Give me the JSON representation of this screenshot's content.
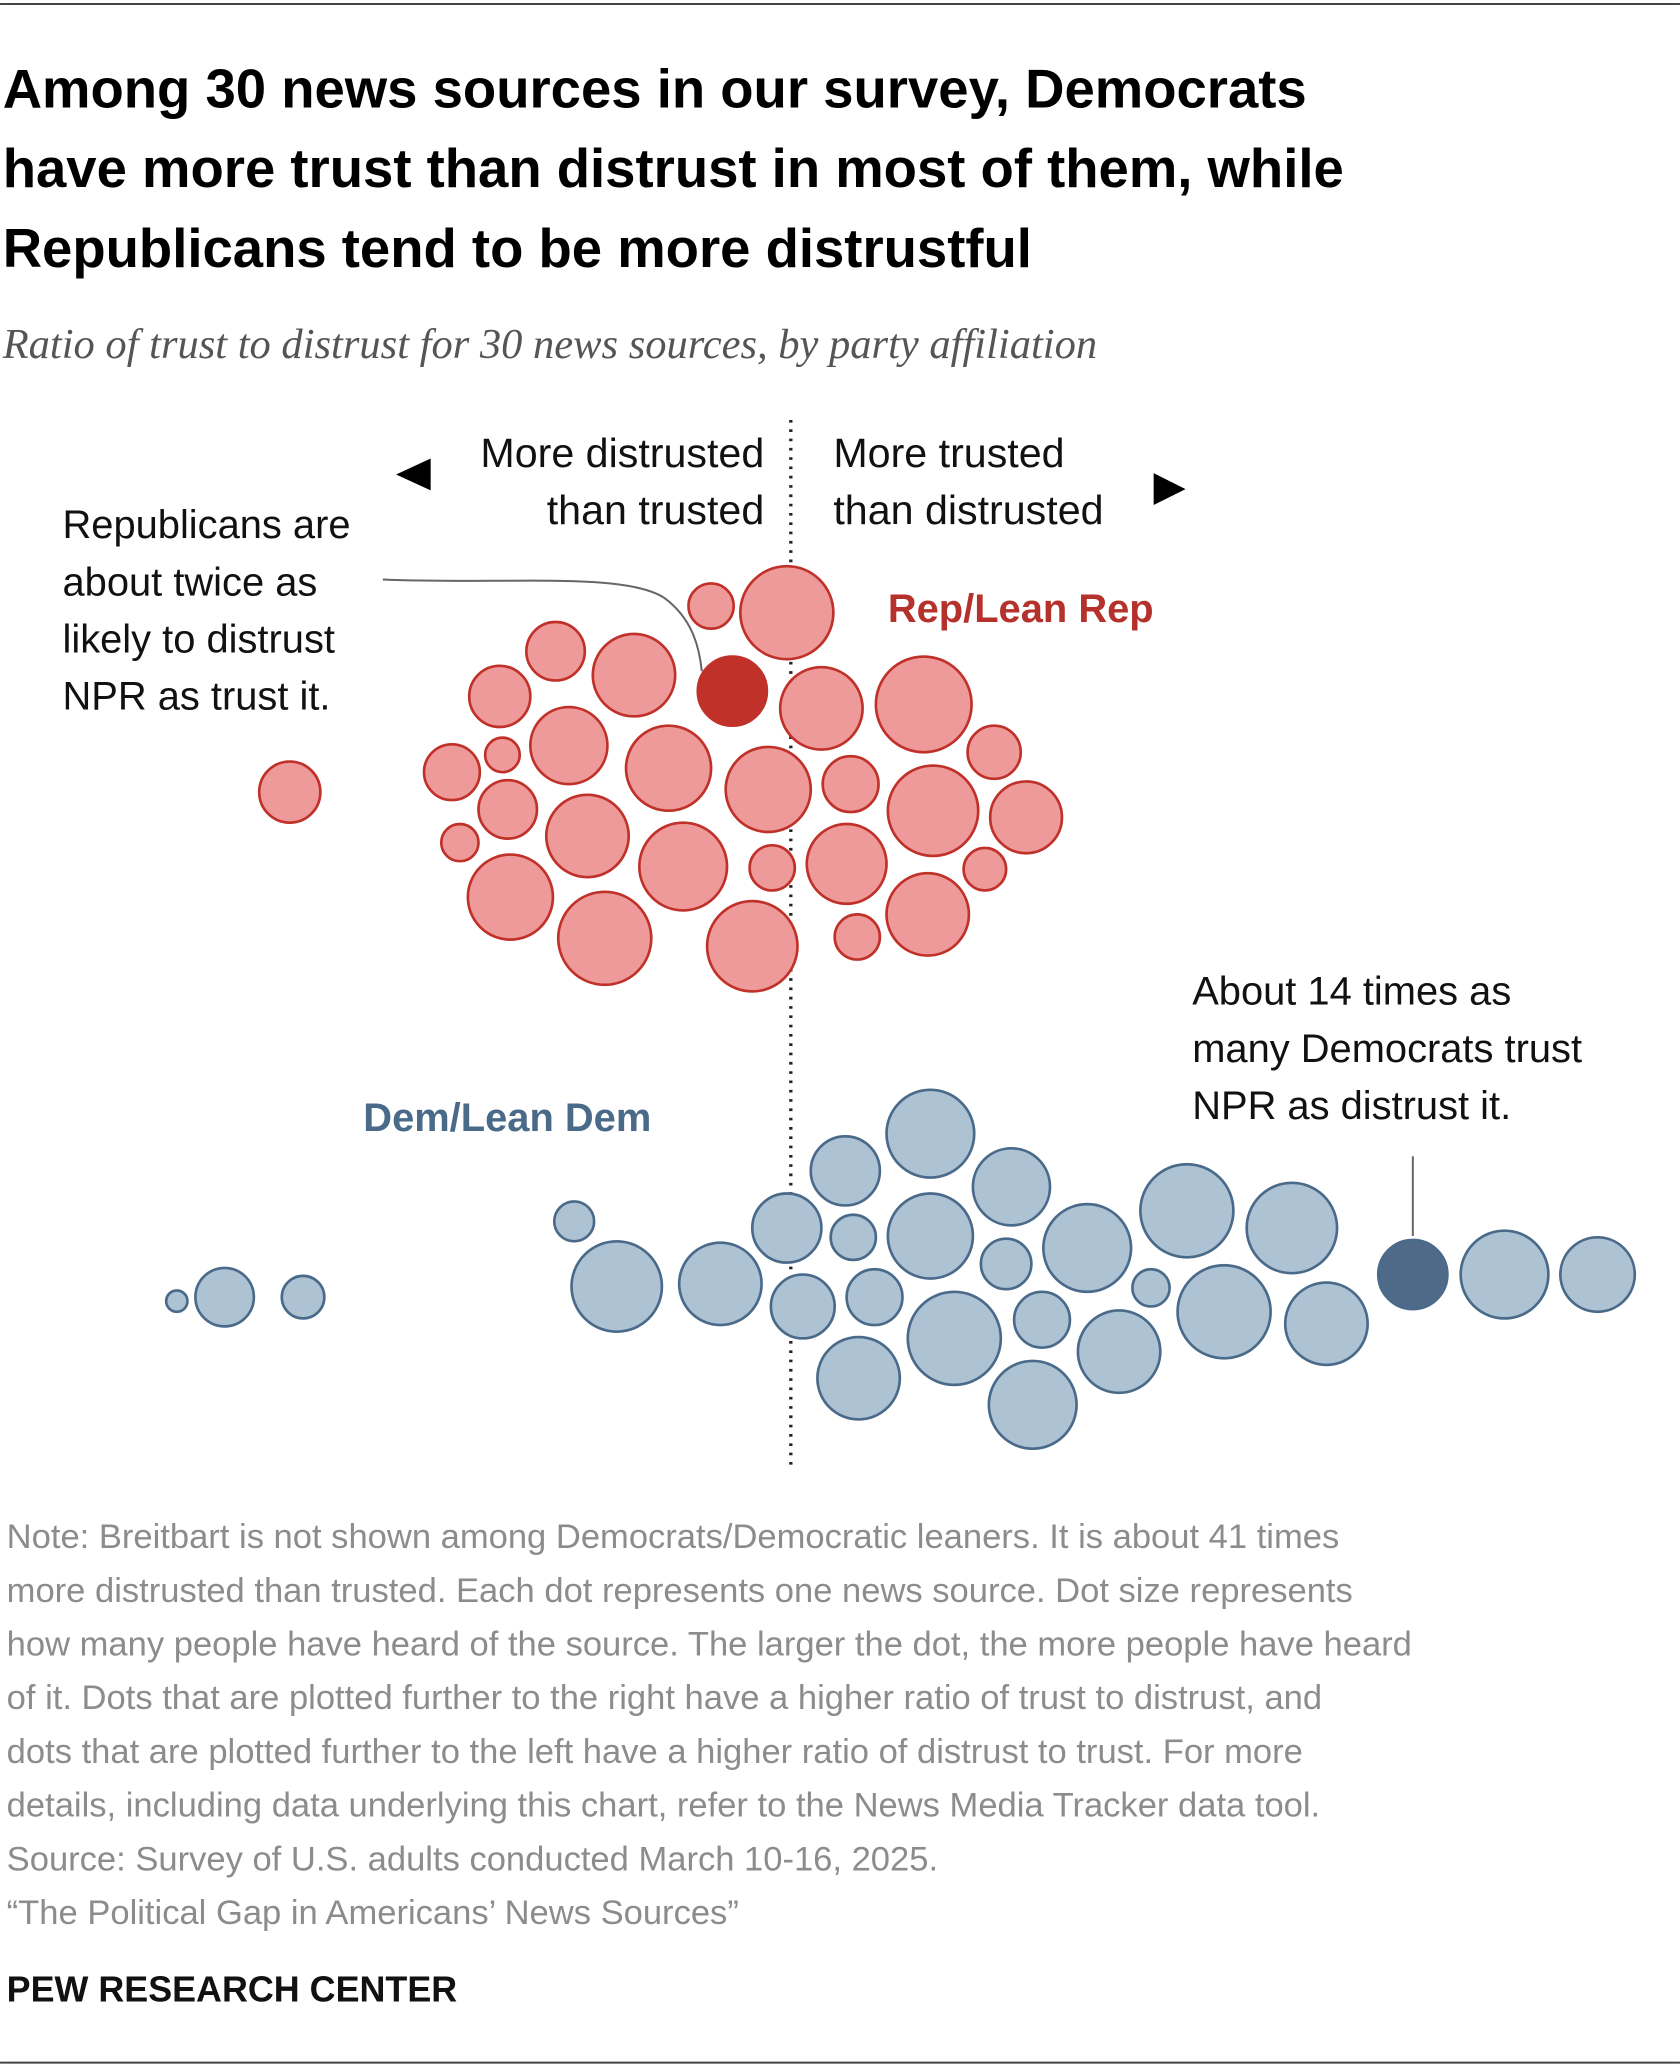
{
  "chart_data": {
    "type": "beeswarm",
    "title": [
      "Among 30 news sources in our survey, Democrats",
      "have more trust than distrust in most of them, while",
      "Republicans tend to be more distrustful"
    ],
    "subtitle": "Ratio of trust to distrust for 30 news sources, by party affiliation",
    "left_label": [
      "More distrusted",
      "than trusted"
    ],
    "right_label": [
      "More trusted",
      "than distrusted"
    ],
    "xlim": [
      -480,
      640
    ],
    "series": [
      {
        "name": "Rep/Lean Rep",
        "color": "#ee9a9a",
        "stroke": "#c0312a",
        "label_color": "#b5312b",
        "highlight": {
          "index": 5,
          "color": "#c0312a"
        },
        "values": [
          -377,
          -60,
          -3,
          -177,
          -118,
          -44,
          23,
          100,
          -219,
          153,
          -167,
          -217,
          -255,
          -92,
          -17,
          45,
          107,
          -213,
          177,
          -249,
          -153,
          -81,
          -14,
          42,
          146,
          -211,
          -140,
          -29,
          50,
          103
        ],
        "sizes": [
          23,
          17,
          35,
          22,
          31,
          26,
          31,
          36,
          23,
          20,
          29,
          13,
          21,
          32,
          32,
          21,
          34,
          22,
          27,
          14,
          31,
          33,
          17,
          30,
          16,
          32,
          35,
          34,
          17,
          31
        ],
        "annotation": [
          "Republicans are",
          "about twice as",
          "likely to distrust",
          "NPR as trust it."
        ]
      },
      {
        "name": "Dem/Lean Dem",
        "color": "#adc2d3",
        "stroke": "#4a6a8a",
        "label_color": "#4a6a8a",
        "highlight": {
          "index": 26,
          "color": "#4f6a89"
        },
        "values": [
          -462,
          -426,
          -367,
          -163,
          -131,
          -53,
          -3,
          41,
          105,
          47,
          105,
          166,
          9,
          63,
          123,
          162,
          223,
          189,
          51,
          182,
          247,
          271,
          298,
          326,
          377,
          403,
          468,
          537,
          607
        ],
        "sizes": [
          8,
          22,
          16,
          15,
          34,
          31,
          26,
          26,
          33,
          17,
          32,
          29,
          24,
          21,
          35,
          19,
          33,
          21,
          31,
          33,
          31,
          14,
          35,
          35,
          34,
          31,
          26,
          33,
          28
        ],
        "annotation": [
          "About 14 times as",
          "many Democrats trust",
          "NPR as distrust it."
        ]
      }
    ],
    "note": [
      "Note: Breitbart is not shown among Democrats/Democratic leaners. It is about 41 times",
      "more distrusted than trusted. Each dot represents one news source. Dot size represents",
      "how many people have heard of the source. The larger the dot, the more people have heard",
      "of it. Dots that are plotted further to the right have a higher ratio of trust to distrust, and",
      "dots that are plotted further to the left have a higher ratio of distrust to trust. For more",
      "details, including data underlying this chart, refer to the News Media Tracker data tool.",
      "Source: Survey of U.S. adults conducted March 10-16, 2025.",
      "“The Political Gap in Americans’ News Sources”"
    ],
    "branding": "PEW RESEARCH CENTER"
  }
}
